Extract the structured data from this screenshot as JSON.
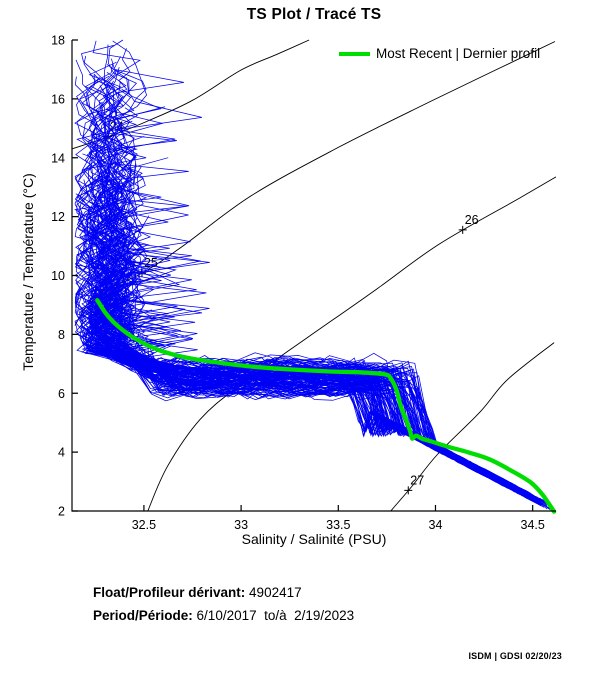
{
  "title": "TS Plot / Tracé TS",
  "legend": {
    "label": "Most Recent | Dernier profil",
    "color": "#00dd00"
  },
  "axes": {
    "x_label": "Salinity / Salinité (PSU)",
    "y_label": "Temperature / Température (°C)",
    "x_ticks": [
      "32.5",
      "33",
      "33.5",
      "34",
      "34.5"
    ],
    "x_tick_values": [
      32.5,
      33,
      33.5,
      34,
      34.5
    ],
    "y_ticks": [
      "2",
      "4",
      "6",
      "8",
      "10",
      "12",
      "14",
      "16",
      "18"
    ],
    "y_tick_values": [
      2,
      4,
      6,
      8,
      10,
      12,
      14,
      16,
      18
    ],
    "axis_color": "#000000"
  },
  "footer": {
    "float_label": "Float/Profileur dérivant:",
    "float_value": " 4902417",
    "period_label": "Period/Période:",
    "period_value": " 6/10/2017  to/à  2/19/2023",
    "credit": "ISDM | GDSI 02/20/23"
  },
  "chart_data": {
    "type": "line",
    "title": "TS Plot / Tracé TS",
    "xlabel": "Salinity / Salinité (PSU)",
    "ylabel": "Temperature / Température (°C)",
    "xlim": [
      32.13,
      34.62
    ],
    "ylim": [
      2,
      18
    ],
    "grid": false,
    "legend_position": "top-right",
    "series": [
      {
        "name": "Most Recent | Dernier profil",
        "color": "#00dd00",
        "width": 4.3,
        "points": [
          [
            32.26,
            9.16
          ],
          [
            32.3,
            8.75
          ],
          [
            32.34,
            8.44
          ],
          [
            32.4,
            8.1
          ],
          [
            32.48,
            7.76
          ],
          [
            32.58,
            7.46
          ],
          [
            32.71,
            7.22
          ],
          [
            32.87,
            7.05
          ],
          [
            33.05,
            6.91
          ],
          [
            33.25,
            6.81
          ],
          [
            33.46,
            6.74
          ],
          [
            33.61,
            6.71
          ],
          [
            33.74,
            6.64
          ],
          [
            33.77,
            6.5
          ],
          [
            33.8,
            6.1
          ],
          [
            33.82,
            5.59
          ],
          [
            33.85,
            5.08
          ],
          [
            33.87,
            4.7
          ],
          [
            33.88,
            4.46
          ],
          [
            33.9,
            4.56
          ],
          [
            33.93,
            4.46
          ],
          [
            33.98,
            4.36
          ],
          [
            34.06,
            4.19
          ],
          [
            34.17,
            3.99
          ],
          [
            34.28,
            3.75
          ],
          [
            34.39,
            3.37
          ],
          [
            34.49,
            2.97
          ],
          [
            34.55,
            2.56
          ],
          [
            34.59,
            2.18
          ],
          [
            34.61,
            1.98
          ]
        ]
      }
    ],
    "ensemble": {
      "color": "#0000f5",
      "line_width": 0.75,
      "count": 150,
      "seed": 20230219,
      "surface_salinity_center": 32.31,
      "surface_salinity_jitter": 0.2,
      "surface_temp_top_range": [
        8.8,
        18.15
      ],
      "band_temp_range": [
        6.05,
        7.05
      ],
      "band_salinity_end_range": [
        33.58,
        33.94
      ],
      "tail_salinity_end_range": [
        34.3,
        34.62
      ],
      "tail_temp_end": 2.0
    },
    "isopycnals": {
      "color": "#000000",
      "line_width": 0.9,
      "lines": [
        {
          "label": "24",
          "label_at": [
            32.315,
            14.72
          ],
          "points": [
            [
              32.13,
              14.3
            ],
            [
              32.32,
              14.72
            ],
            [
              32.52,
              15.25
            ],
            [
              32.75,
              15.95
            ],
            [
              33.0,
              16.98
            ],
            [
              33.18,
              17.5
            ],
            [
              33.35,
              18.0
            ]
          ]
        },
        {
          "label": "25",
          "label_at": [
            32.49,
            10.08
          ],
          "points": [
            [
              32.145,
              8.3
            ],
            [
              32.25,
              9.3
            ],
            [
              32.49,
              10.08
            ],
            [
              32.7,
              11.0
            ],
            [
              33.05,
              12.7
            ],
            [
              33.5,
              14.35
            ],
            [
              33.98,
              15.93
            ],
            [
              34.3,
              16.95
            ],
            [
              34.615,
              17.95
            ]
          ]
        },
        {
          "label": "26",
          "label_at": [
            34.14,
            11.55
          ],
          "points": [
            [
              32.52,
              2.0
            ],
            [
              32.62,
              3.5
            ],
            [
              32.79,
              5.12
            ],
            [
              33.0,
              6.3
            ],
            [
              33.35,
              7.93
            ],
            [
              33.7,
              9.55
            ],
            [
              34.02,
              11.07
            ],
            [
              34.43,
              12.62
            ],
            [
              34.62,
              13.35
            ]
          ]
        },
        {
          "label": "27",
          "label_at": [
            33.86,
            2.7
          ],
          "points": [
            [
              33.77,
              2.0
            ],
            [
              33.88,
              2.85
            ],
            [
              34.01,
              3.92
            ],
            [
              34.23,
              5.37
            ],
            [
              34.37,
              6.46
            ],
            [
              34.61,
              7.72
            ]
          ]
        }
      ]
    }
  }
}
